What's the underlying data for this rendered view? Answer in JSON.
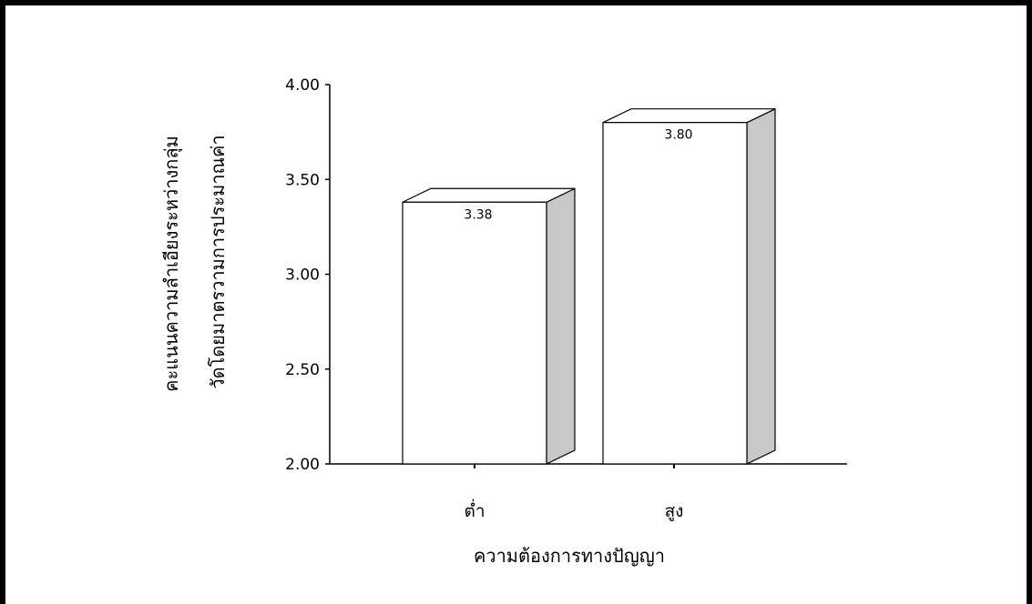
{
  "chart_data": {
    "type": "bar",
    "style": "3d",
    "categories": [
      "ต่ำ",
      "สูง"
    ],
    "values": [
      3.38,
      3.8
    ],
    "data_labels": [
      "3.38",
      "3.80"
    ],
    "xlabel": "ความต้องการทางปัญญา",
    "ylabel_lines": [
      "คะแนนความลำเอียงระหว่างกลุ่ม",
      "วัดโดยมาตรวามการประมาณค่า"
    ],
    "yticks": [
      "2.00",
      "2.50",
      "3.00",
      "3.50",
      "4.00"
    ],
    "ylim": [
      2.0,
      4.0
    ],
    "grid": false,
    "colors": {
      "bar_front": "#ffffff",
      "bar_side": "#c8c8c8",
      "bar_top": "#ffffff",
      "stroke": "#000000"
    }
  }
}
